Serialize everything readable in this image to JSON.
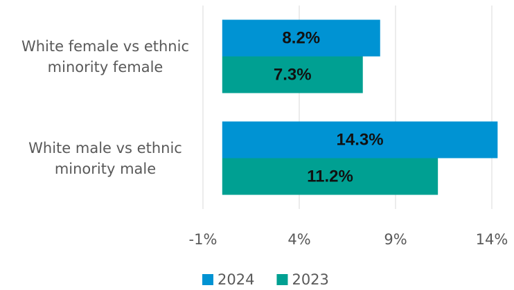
{
  "chart_data": {
    "type": "hbar",
    "categories": [
      "White female vs ethnic minority female",
      "White male vs ethnic minority male"
    ],
    "series": [
      {
        "name": "2024",
        "color": "#0093d3",
        "values": [
          8.2,
          14.3
        ],
        "value_labels": [
          "8.2%",
          "14.3%"
        ]
      },
      {
        "name": "2023",
        "color": "#00a092",
        "values": [
          7.3,
          11.2
        ],
        "value_labels": [
          "7.3%",
          "11.2%"
        ]
      }
    ],
    "xlim": [
      -1,
      14
    ],
    "xticks": [
      {
        "value": -1,
        "label": "-1%"
      },
      {
        "value": 4,
        "label": "4%"
      },
      {
        "value": 9,
        "label": "9%"
      },
      {
        "value": 14,
        "label": "14%"
      }
    ],
    "grid": true,
    "legend": "bottom"
  }
}
